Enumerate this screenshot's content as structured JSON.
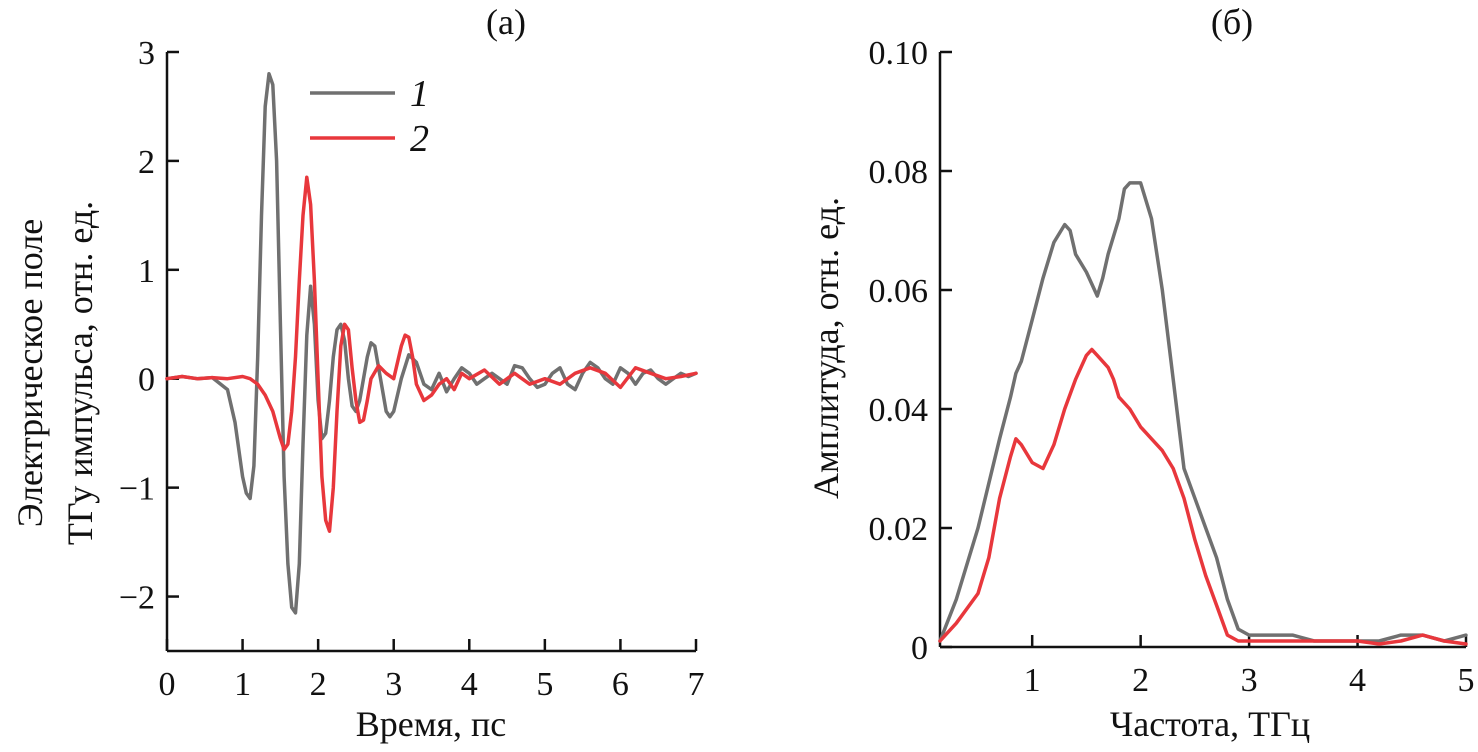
{
  "colors": {
    "series_1": "#707070",
    "series_2": "#e8373c",
    "axis": "#111111"
  },
  "chart_data": [
    {
      "type": "line",
      "panel_label": "(а)",
      "xlabel": "Время, пс",
      "ylabel_line1": "Электрическое поле",
      "ylabel_line2": "ТГу импульса, отн. ед.",
      "xlim": [
        0,
        7
      ],
      "ylim": [
        -2.5,
        3
      ],
      "xticks": [
        0,
        1,
        2,
        3,
        4,
        5,
        6,
        7
      ],
      "xtick_labels": [
        "0",
        "1",
        "2",
        "3",
        "4",
        "5",
        "6",
        "7"
      ],
      "yticks": [
        3,
        2,
        1,
        0,
        -1,
        -2
      ],
      "ytick_labels": [
        "3",
        "2",
        "1",
        "0",
        "−1",
        "−2"
      ],
      "legend": "top",
      "series": [
        {
          "name": "1",
          "x": [
            0,
            0.2,
            0.4,
            0.6,
            0.8,
            0.9,
            1.0,
            1.05,
            1.1,
            1.15,
            1.2,
            1.25,
            1.3,
            1.35,
            1.4,
            1.45,
            1.5,
            1.55,
            1.6,
            1.65,
            1.7,
            1.75,
            1.8,
            1.85,
            1.9,
            1.95,
            2.0,
            2.05,
            2.1,
            2.15,
            2.2,
            2.25,
            2.3,
            2.35,
            2.4,
            2.45,
            2.5,
            2.55,
            2.6,
            2.65,
            2.7,
            2.75,
            2.8,
            2.85,
            2.9,
            2.95,
            3.0,
            3.1,
            3.2,
            3.3,
            3.4,
            3.5,
            3.6,
            3.7,
            3.8,
            3.9,
            4.0,
            4.1,
            4.2,
            4.3,
            4.4,
            4.5,
            4.6,
            4.7,
            4.8,
            4.9,
            5.0,
            5.1,
            5.2,
            5.3,
            5.4,
            5.5,
            5.6,
            5.7,
            5.8,
            5.9,
            6.0,
            6.1,
            6.2,
            6.3,
            6.4,
            6.5,
            6.6,
            6.7,
            6.8,
            6.9,
            7.0
          ],
          "y": [
            0.0,
            0.02,
            0.0,
            0.01,
            -0.1,
            -0.4,
            -0.9,
            -1.05,
            -1.1,
            -0.8,
            0.2,
            1.5,
            2.5,
            2.8,
            2.7,
            2.0,
            0.5,
            -0.9,
            -1.7,
            -2.1,
            -2.15,
            -1.7,
            -0.6,
            0.4,
            0.85,
            0.5,
            -0.2,
            -0.55,
            -0.5,
            -0.2,
            0.2,
            0.45,
            0.5,
            0.35,
            0.0,
            -0.25,
            -0.3,
            -0.2,
            0.0,
            0.2,
            0.33,
            0.3,
            0.1,
            -0.1,
            -0.3,
            -0.35,
            -0.3,
            0.0,
            0.22,
            0.15,
            -0.05,
            -0.1,
            0.05,
            -0.12,
            0.0,
            0.1,
            0.05,
            -0.05,
            0.0,
            0.05,
            0.0,
            -0.05,
            0.12,
            0.1,
            0.0,
            -0.08,
            -0.05,
            0.05,
            0.1,
            -0.05,
            -0.1,
            0.05,
            0.15,
            0.1,
            0.0,
            -0.05,
            0.1,
            0.05,
            -0.05,
            0.05,
            0.08,
            0.0,
            -0.05,
            0.0,
            0.05,
            0.02,
            0.05
          ]
        },
        {
          "name": "2",
          "x": [
            0,
            0.2,
            0.4,
            0.6,
            0.8,
            1.0,
            1.1,
            1.2,
            1.3,
            1.4,
            1.5,
            1.55,
            1.6,
            1.65,
            1.7,
            1.75,
            1.8,
            1.85,
            1.9,
            1.95,
            2.0,
            2.05,
            2.1,
            2.15,
            2.2,
            2.25,
            2.3,
            2.35,
            2.4,
            2.45,
            2.5,
            2.55,
            2.6,
            2.65,
            2.7,
            2.8,
            2.9,
            3.0,
            3.1,
            3.15,
            3.2,
            3.25,
            3.3,
            3.4,
            3.5,
            3.6,
            3.7,
            3.8,
            3.9,
            4.0,
            4.2,
            4.4,
            4.6,
            4.8,
            5.0,
            5.2,
            5.4,
            5.6,
            5.8,
            6.0,
            6.2,
            6.4,
            6.6,
            6.8,
            7.0
          ],
          "y": [
            0.0,
            0.02,
            0.0,
            0.01,
            0.0,
            0.02,
            0.0,
            -0.05,
            -0.15,
            -0.3,
            -0.55,
            -0.65,
            -0.6,
            -0.3,
            0.2,
            0.9,
            1.5,
            1.85,
            1.6,
            0.9,
            0.0,
            -0.9,
            -1.3,
            -1.4,
            -1.0,
            -0.3,
            0.3,
            0.5,
            0.45,
            0.1,
            -0.2,
            -0.4,
            -0.38,
            -0.2,
            0.0,
            0.12,
            0.05,
            0.0,
            0.3,
            0.4,
            0.38,
            0.2,
            -0.05,
            -0.2,
            -0.15,
            -0.05,
            0.0,
            -0.1,
            0.05,
            0.0,
            0.08,
            -0.05,
            0.05,
            -0.05,
            0.0,
            -0.05,
            0.05,
            0.1,
            0.05,
            -0.08,
            0.1,
            0.05,
            0.0,
            0.02,
            0.05
          ]
        }
      ]
    },
    {
      "type": "line",
      "panel_label": "(б)",
      "xlabel": "Частота, ТГц",
      "ylabel": "Амплитуда, отн. ед.",
      "xlim": [
        0.15,
        5
      ],
      "ylim": [
        0,
        0.1
      ],
      "xticks": [
        1,
        2,
        3,
        4,
        5
      ],
      "xtick_labels": [
        "1",
        "2",
        "3",
        "4",
        "5"
      ],
      "yticks": [
        0.1,
        0.08,
        0.06,
        0.04,
        0.02,
        0
      ],
      "ytick_labels": [
        "0.10",
        "0.08",
        "0.06",
        "0.04",
        "0.02",
        "0"
      ],
      "series": [
        {
          "name": "1",
          "x": [
            0.15,
            0.3,
            0.5,
            0.7,
            0.8,
            0.85,
            0.9,
            1.0,
            1.1,
            1.2,
            1.3,
            1.35,
            1.4,
            1.5,
            1.6,
            1.65,
            1.7,
            1.8,
            1.85,
            1.9,
            1.95,
            2.0,
            2.1,
            2.2,
            2.3,
            2.4,
            2.5,
            2.6,
            2.7,
            2.8,
            2.9,
            3.0,
            3.2,
            3.4,
            3.6,
            3.8,
            4.0,
            4.2,
            4.4,
            4.6,
            4.8,
            5.0
          ],
          "y": [
            0.001,
            0.008,
            0.02,
            0.035,
            0.042,
            0.046,
            0.048,
            0.055,
            0.062,
            0.068,
            0.071,
            0.07,
            0.066,
            0.063,
            0.059,
            0.062,
            0.066,
            0.072,
            0.077,
            0.078,
            0.078,
            0.078,
            0.072,
            0.06,
            0.045,
            0.03,
            0.025,
            0.02,
            0.015,
            0.008,
            0.003,
            0.002,
            0.002,
            0.002,
            0.001,
            0.001,
            0.001,
            0.001,
            0.002,
            0.002,
            0.001,
            0.002
          ]
        },
        {
          "name": "2",
          "x": [
            0.15,
            0.3,
            0.5,
            0.6,
            0.7,
            0.8,
            0.85,
            0.9,
            1.0,
            1.1,
            1.2,
            1.3,
            1.4,
            1.5,
            1.55,
            1.6,
            1.7,
            1.75,
            1.8,
            1.9,
            2.0,
            2.1,
            2.2,
            2.3,
            2.4,
            2.5,
            2.6,
            2.7,
            2.8,
            2.9,
            3.0,
            3.2,
            3.4,
            3.6,
            3.8,
            4.0,
            4.2,
            4.4,
            4.6,
            4.8,
            5.0
          ],
          "y": [
            0.001,
            0.004,
            0.009,
            0.015,
            0.025,
            0.032,
            0.035,
            0.034,
            0.031,
            0.03,
            0.034,
            0.04,
            0.045,
            0.049,
            0.05,
            0.049,
            0.047,
            0.045,
            0.042,
            0.04,
            0.037,
            0.035,
            0.033,
            0.03,
            0.025,
            0.018,
            0.012,
            0.007,
            0.002,
            0.001,
            0.001,
            0.001,
            0.001,
            0.001,
            0.001,
            0.001,
            0.0005,
            0.001,
            0.002,
            0.001,
            0.0005
          ]
        }
      ]
    }
  ]
}
